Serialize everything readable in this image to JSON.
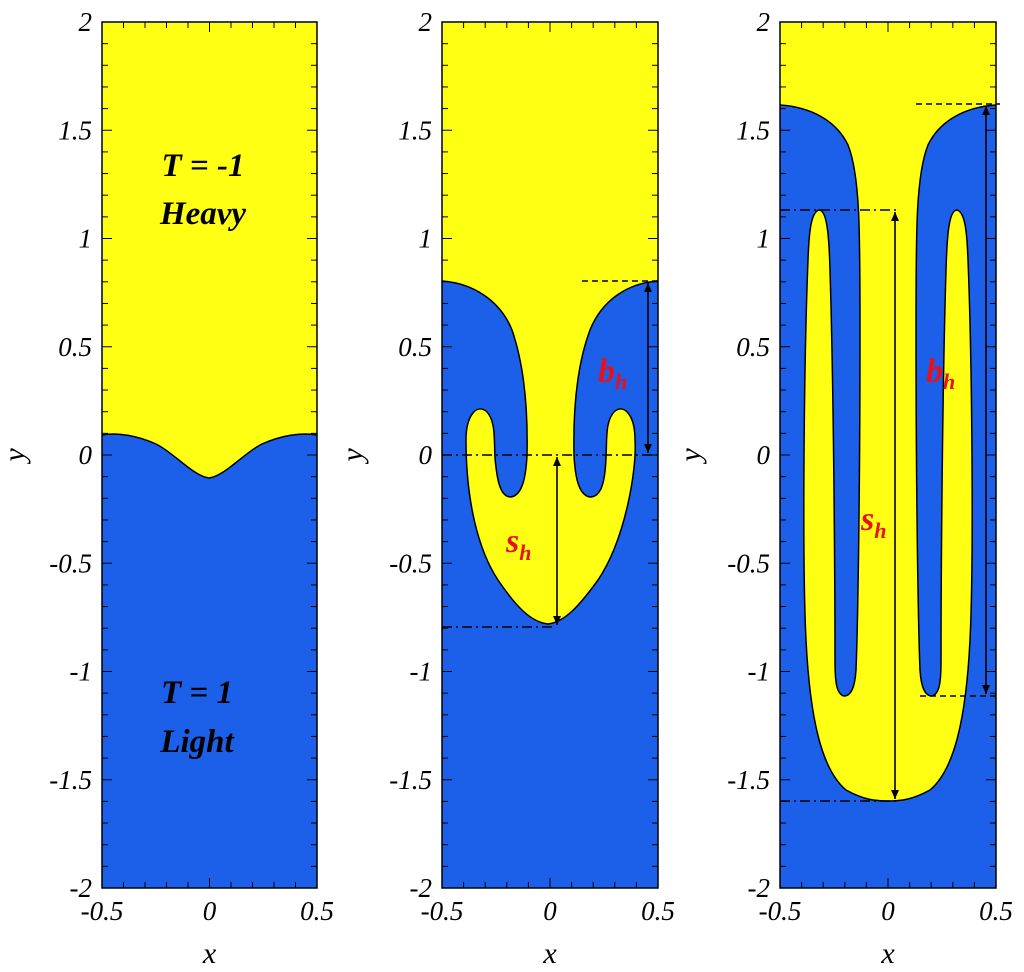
{
  "colors": {
    "heavy": "#ffff14",
    "light": "#1c5fe8",
    "annotation": "#e8101a",
    "axis": "#000000"
  },
  "axes": {
    "x_label": "x",
    "y_label": "y",
    "x_ticks": [
      "-0.5",
      "0",
      "0.5"
    ],
    "y_ticks": [
      "2",
      "1.5",
      "1",
      "0.5",
      "0",
      "-0.5",
      "-1",
      "-1.5",
      "-2"
    ],
    "x_range": [
      -0.5,
      0.5
    ],
    "y_range": [
      -2,
      2
    ]
  },
  "panels": [
    {
      "interface_bottom_y": -0.1,
      "interface_wall_y": 0.1,
      "labels": {
        "heavy_t": "T = -1",
        "heavy_name": "Heavy",
        "light_t": "T = 1",
        "light_name": "Light"
      }
    },
    {
      "bubble_height_y": 0.8,
      "spike_depth_y": -0.8,
      "annotations": {
        "b_main": "b",
        "b_sub": "h",
        "s_main": "s",
        "s_sub": "h"
      }
    },
    {
      "bubble_height_y": 1.61,
      "spike_depth_y": -1.6,
      "annotations": {
        "b_main": "b",
        "b_sub": "h",
        "s_main": "s",
        "s_sub": "h"
      }
    }
  ]
}
